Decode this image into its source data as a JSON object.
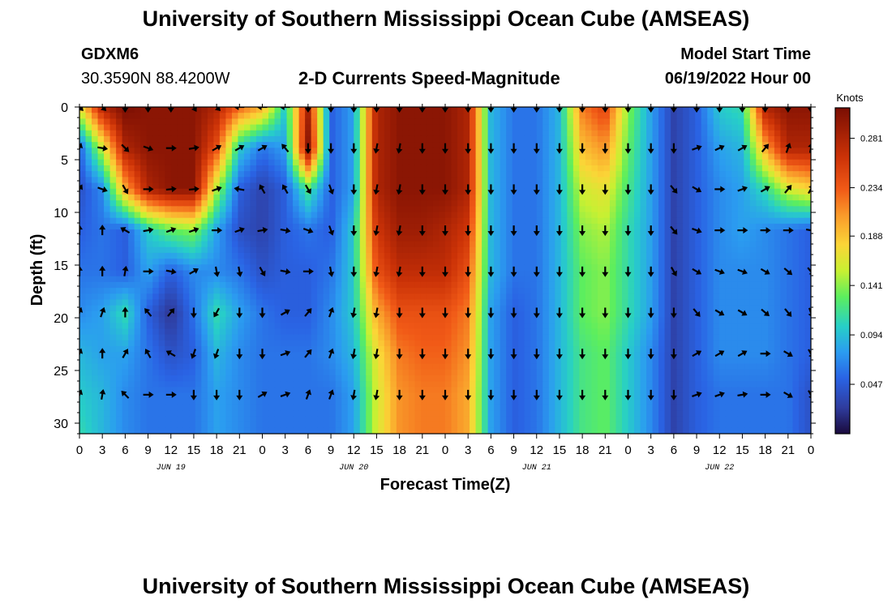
{
  "title_top": "University of Southern Mississippi Ocean Cube (AMSEAS)",
  "title_bottom": "University of Southern Mississippi Ocean Cube (AMSEAS)",
  "station": {
    "name": "GDXM6",
    "coords": "30.3590N  88.4200W"
  },
  "model_start": {
    "label": "Model Start Time",
    "value": "06/19/2022 Hour 00"
  },
  "chart_data": {
    "type": "heatmap",
    "title": "2-D Currents Speed-Magnitude",
    "xlabel": "Forecast Time(Z)",
    "ylabel": "Depth (ft)",
    "x_unit": "hours since 06/19/2022 00Z",
    "xlim": [
      0,
      96
    ],
    "ylim": [
      31,
      0
    ],
    "x_tick_values": [
      0,
      3,
      6,
      9,
      12,
      15,
      18,
      21,
      24,
      27,
      30,
      33,
      36,
      39,
      42,
      45,
      48,
      51,
      54,
      57,
      60,
      63,
      66,
      69,
      72,
      75,
      78,
      81,
      84,
      87,
      90,
      93,
      96
    ],
    "x_tick_labels": [
      "0",
      "3",
      "6",
      "9",
      "12",
      "15",
      "18",
      "21",
      "0",
      "3",
      "6",
      "9",
      "12",
      "15",
      "18",
      "21",
      "0",
      "3",
      "6",
      "9",
      "12",
      "15",
      "18",
      "21",
      "0",
      "3",
      "6",
      "9",
      "12",
      "15",
      "18",
      "21",
      "0"
    ],
    "day_labels": [
      {
        "label": "JUN 19",
        "hour": 12
      },
      {
        "label": "JUN 20",
        "hour": 36
      },
      {
        "label": "JUN 21",
        "hour": 60
      },
      {
        "label": "JUN 22",
        "hour": 84
      }
    ],
    "y_ticks": [
      0,
      5,
      10,
      15,
      20,
      25,
      30
    ],
    "colorbar": {
      "unit_label": "Knots",
      "range": [
        0,
        0.31
      ],
      "tick_values": [
        0.281,
        0.234,
        0.188,
        0.141,
        0.094,
        0.047
      ],
      "tick_labels": [
        "0.281",
        "0.234",
        "0.188",
        "0.141",
        "0.094",
        "0.047"
      ]
    },
    "depths": [
      0,
      3.9,
      7.8,
      11.7,
      15.6,
      19.5,
      23.4,
      27.3,
      31
    ],
    "times": [
      0,
      3,
      6,
      9,
      12,
      15,
      18,
      21,
      24,
      27,
      30,
      33,
      36,
      39,
      42,
      45,
      48,
      51,
      54,
      57,
      60,
      63,
      66,
      69,
      72,
      75,
      78,
      81,
      84,
      87,
      90,
      93,
      96
    ],
    "speed": [
      [
        0.17,
        0.28,
        0.31,
        0.3,
        0.3,
        0.3,
        0.28,
        0.23,
        0.2,
        0.1,
        0.28,
        0.05,
        0.08,
        0.28,
        0.3,
        0.3,
        0.3,
        0.28,
        0.09,
        0.06,
        0.06,
        0.09,
        0.22,
        0.25,
        0.14,
        0.08,
        0.03,
        0.05,
        0.1,
        0.11,
        0.28,
        0.3,
        0.3
      ],
      [
        0.05,
        0.16,
        0.28,
        0.3,
        0.3,
        0.3,
        0.24,
        0.1,
        0.06,
        0.08,
        0.3,
        0.05,
        0.08,
        0.28,
        0.3,
        0.3,
        0.3,
        0.28,
        0.09,
        0.06,
        0.06,
        0.09,
        0.19,
        0.21,
        0.13,
        0.08,
        0.03,
        0.05,
        0.08,
        0.09,
        0.2,
        0.28,
        0.28
      ],
      [
        0.04,
        0.07,
        0.2,
        0.28,
        0.3,
        0.3,
        0.15,
        0.05,
        0.03,
        0.05,
        0.12,
        0.05,
        0.08,
        0.28,
        0.3,
        0.3,
        0.3,
        0.28,
        0.09,
        0.06,
        0.06,
        0.09,
        0.16,
        0.17,
        0.12,
        0.08,
        0.03,
        0.05,
        0.07,
        0.08,
        0.11,
        0.16,
        0.18
      ],
      [
        0.05,
        0.06,
        0.05,
        0.1,
        0.13,
        0.14,
        0.08,
        0.04,
        0.03,
        0.05,
        0.06,
        0.05,
        0.1,
        0.26,
        0.29,
        0.29,
        0.28,
        0.26,
        0.09,
        0.06,
        0.06,
        0.09,
        0.14,
        0.15,
        0.11,
        0.08,
        0.03,
        0.05,
        0.07,
        0.08,
        0.07,
        0.06,
        0.05
      ],
      [
        0.06,
        0.06,
        0.05,
        0.08,
        0.05,
        0.07,
        0.07,
        0.06,
        0.04,
        0.05,
        0.05,
        0.06,
        0.1,
        0.24,
        0.27,
        0.27,
        0.27,
        0.24,
        0.09,
        0.06,
        0.06,
        0.09,
        0.13,
        0.14,
        0.11,
        0.08,
        0.03,
        0.05,
        0.07,
        0.07,
        0.07,
        0.06,
        0.05
      ],
      [
        0.07,
        0.08,
        0.11,
        0.05,
        0.02,
        0.06,
        0.11,
        0.08,
        0.06,
        0.05,
        0.05,
        0.07,
        0.1,
        0.2,
        0.24,
        0.24,
        0.24,
        0.22,
        0.08,
        0.05,
        0.06,
        0.09,
        0.13,
        0.14,
        0.11,
        0.08,
        0.03,
        0.05,
        0.07,
        0.07,
        0.07,
        0.06,
        0.05
      ],
      [
        0.09,
        0.08,
        0.08,
        0.06,
        0.04,
        0.05,
        0.09,
        0.07,
        0.06,
        0.06,
        0.06,
        0.07,
        0.09,
        0.17,
        0.22,
        0.23,
        0.23,
        0.21,
        0.08,
        0.05,
        0.06,
        0.09,
        0.12,
        0.13,
        0.1,
        0.07,
        0.03,
        0.05,
        0.07,
        0.07,
        0.07,
        0.06,
        0.05
      ],
      [
        0.1,
        0.09,
        0.07,
        0.06,
        0.06,
        0.06,
        0.08,
        0.07,
        0.06,
        0.06,
        0.06,
        0.06,
        0.08,
        0.16,
        0.21,
        0.22,
        0.22,
        0.2,
        0.08,
        0.05,
        0.06,
        0.09,
        0.12,
        0.13,
        0.1,
        0.07,
        0.03,
        0.05,
        0.06,
        0.06,
        0.06,
        0.06,
        0.04
      ],
      [
        0.11,
        0.09,
        0.07,
        0.06,
        0.06,
        0.06,
        0.08,
        0.07,
        0.06,
        0.06,
        0.06,
        0.06,
        0.08,
        0.16,
        0.21,
        0.22,
        0.22,
        0.2,
        0.08,
        0.05,
        0.06,
        0.09,
        0.12,
        0.13,
        0.1,
        0.07,
        0.03,
        0.05,
        0.06,
        0.06,
        0.06,
        0.06,
        0.04
      ]
    ],
    "vector_rows": [
      {
        "depth": 0,
        "dirs": [
          135,
          135,
          180,
          180,
          180,
          150,
          135,
          270,
          270,
          270,
          180,
          180,
          180,
          180,
          180,
          180,
          180,
          180,
          180,
          180,
          180,
          180,
          180,
          180,
          180,
          180,
          180,
          180,
          180,
          180,
          180,
          180,
          180
        ]
      },
      {
        "depth": 3.9,
        "dirs": [
          20,
          100,
          135,
          110,
          90,
          80,
          60,
          60,
          60,
          320,
          180,
          180,
          180,
          190,
          190,
          180,
          180,
          180,
          180,
          180,
          180,
          180,
          180,
          180,
          180,
          180,
          180,
          70,
          65,
          60,
          40,
          20,
          10
        ]
      },
      {
        "depth": 7.8,
        "dirs": [
          30,
          110,
          150,
          90,
          85,
          85,
          70,
          280,
          330,
          330,
          150,
          160,
          180,
          190,
          190,
          180,
          180,
          180,
          180,
          180,
          180,
          180,
          180,
          180,
          180,
          180,
          140,
          120,
          90,
          70,
          60,
          40,
          30
        ]
      },
      {
        "depth": 11.7,
        "dirs": [
          0,
          0,
          300,
          80,
          70,
          70,
          90,
          70,
          80,
          100,
          110,
          160,
          180,
          190,
          190,
          180,
          180,
          180,
          180,
          180,
          180,
          180,
          180,
          180,
          180,
          180,
          140,
          110,
          90,
          90,
          90,
          90,
          100
        ]
      },
      {
        "depth": 15.6,
        "dirs": [
          0,
          0,
          10,
          90,
          100,
          60,
          170,
          170,
          150,
          100,
          90,
          170,
          180,
          190,
          190,
          180,
          180,
          180,
          180,
          180,
          180,
          180,
          180,
          180,
          180,
          180,
          150,
          120,
          110,
          110,
          120,
          130,
          140
        ]
      },
      {
        "depth": 19.5,
        "dirs": [
          20,
          20,
          0,
          320,
          40,
          180,
          210,
          180,
          180,
          60,
          40,
          20,
          190,
          190,
          180,
          180,
          180,
          180,
          180,
          180,
          180,
          180,
          180,
          180,
          180,
          180,
          180,
          140,
          120,
          120,
          130,
          140,
          160
        ]
      },
      {
        "depth": 23.4,
        "dirs": [
          20,
          0,
          30,
          330,
          300,
          200,
          200,
          180,
          180,
          70,
          40,
          20,
          190,
          190,
          180,
          180,
          180,
          180,
          180,
          180,
          180,
          180,
          180,
          180,
          180,
          180,
          180,
          60,
          60,
          60,
          90,
          120,
          150
        ]
      },
      {
        "depth": 27.3,
        "dirs": [
          20,
          10,
          315,
          90,
          90,
          180,
          180,
          180,
          60,
          70,
          20,
          20,
          190,
          190,
          180,
          180,
          180,
          180,
          180,
          180,
          180,
          180,
          180,
          180,
          180,
          180,
          180,
          70,
          70,
          80,
          90,
          120,
          150
        ]
      }
    ]
  }
}
